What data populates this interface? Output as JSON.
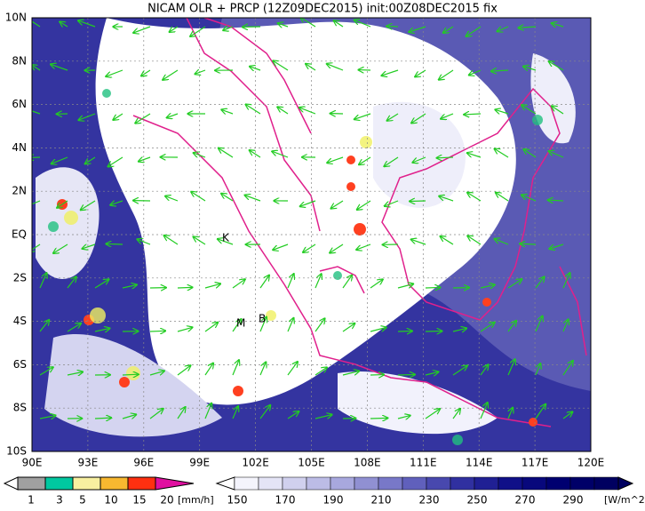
{
  "title": "NICAM OLR + PRCP (12Z09DEC2015) init:00Z08DEC2015 fix",
  "map": {
    "lat_labels": [
      "10N",
      "8N",
      "6N",
      "4N",
      "2N",
      "EQ",
      "2S",
      "4S",
      "6S",
      "8S",
      "10S"
    ],
    "lon_labels": [
      "90E",
      "93E",
      "96E",
      "99E",
      "102E",
      "105E",
      "108E",
      "111E",
      "114E",
      "117E",
      "120E"
    ],
    "markers": [
      "K",
      "M",
      "B"
    ]
  },
  "precip_legend": {
    "labels": [
      "1",
      "3",
      "5",
      "10",
      "15",
      "20"
    ],
    "unit": "[mm/h]"
  },
  "olr_legend": {
    "labels": [
      "150",
      "170",
      "190",
      "210",
      "230",
      "250",
      "270",
      "290"
    ],
    "unit": "[W/m^2]"
  }
}
